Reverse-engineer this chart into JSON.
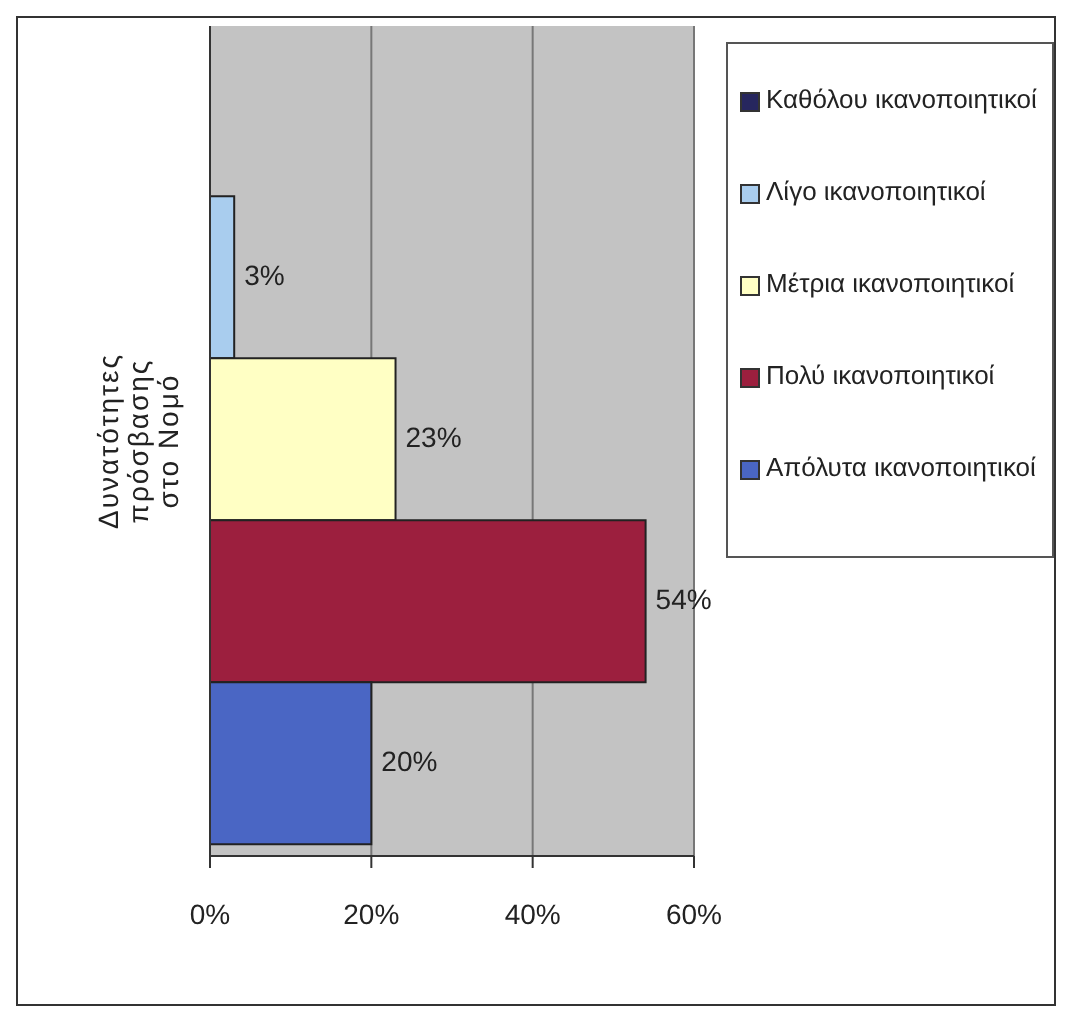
{
  "chart_data": {
    "type": "bar",
    "orientation": "horizontal",
    "categories": [
      "Δυνατότητες πρόσβασης στο Νομό"
    ],
    "series": [
      {
        "name": "Καθόλου ικανοποιητικοί",
        "color": "#26265e",
        "values": [
          null
        ],
        "value_labels": [
          null
        ]
      },
      {
        "name": "Λίγο ικανοποιητικοί",
        "color": "#a9cdee",
        "values": [
          3
        ],
        "value_labels": [
          "3%"
        ]
      },
      {
        "name": "Μέτρια ικανοποιητικοί",
        "color": "#ffffc4",
        "values": [
          23
        ],
        "value_labels": [
          "23%"
        ]
      },
      {
        "name": "Πολύ ικανοποιητικοί",
        "color": "#9c1f3e",
        "values": [
          54
        ],
        "value_labels": [
          "54%"
        ]
      },
      {
        "name": "Απόλυτα ικανοποιητικοί",
        "color": "#4a66c4",
        "values": [
          20
        ],
        "value_labels": [
          "20%"
        ]
      }
    ],
    "xlim": [
      0,
      60
    ],
    "xticks": [
      {
        "value": 0,
        "label": "0%"
      },
      {
        "value": 20,
        "label": "20%"
      },
      {
        "value": 40,
        "label": "40%"
      },
      {
        "value": 60,
        "label": "60%"
      }
    ],
    "grid": "x",
    "legend": "right"
  }
}
